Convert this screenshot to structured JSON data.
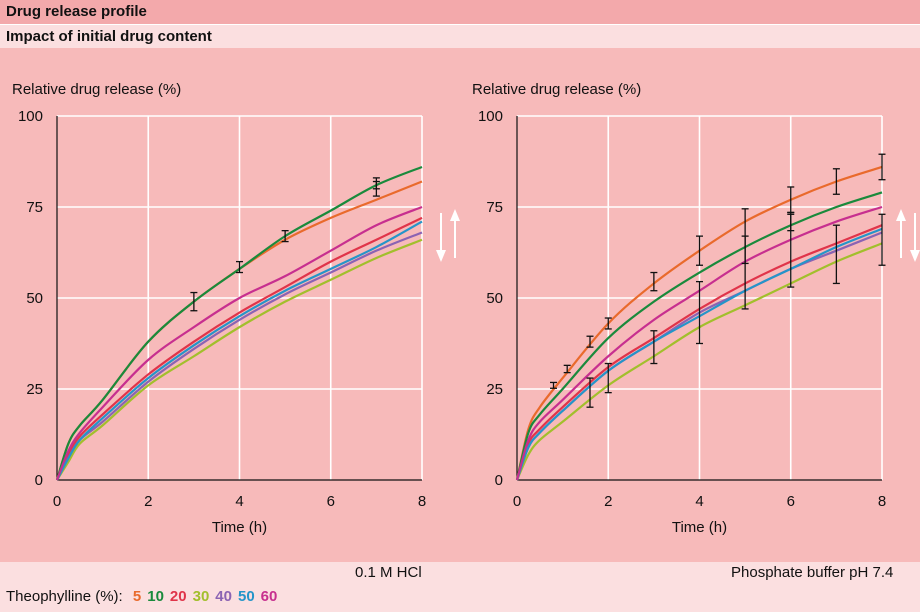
{
  "header": {
    "title": "Drug release profile",
    "subtitle": "Impact of initial drug content"
  },
  "legend": {
    "label": "Theophylline (%):",
    "items": [
      {
        "label": "5",
        "color": "#e96a2c"
      },
      {
        "label": "10",
        "color": "#1a8a3c"
      },
      {
        "label": "20",
        "color": "#e0344a"
      },
      {
        "label": "30",
        "color": "#a2bf2c"
      },
      {
        "label": "40",
        "color": "#8b63b3"
      },
      {
        "label": "50",
        "color": "#2595c9"
      },
      {
        "label": "60",
        "color": "#c72f8f"
      }
    ]
  },
  "chart_data": [
    {
      "type": "line",
      "condition": "0.1 M HCl",
      "ylabel": "Relative drug release (%)",
      "xlabel": "Time (h)",
      "xlim": [
        0,
        8
      ],
      "ylim": [
        0,
        100
      ],
      "xticks": [
        "0",
        "2",
        "4",
        "6",
        "8"
      ],
      "yticks": [
        "0",
        "25",
        "50",
        "75",
        "100"
      ],
      "grid": true,
      "x": [
        0,
        0.25,
        0.5,
        1,
        2,
        3,
        4,
        5,
        6,
        7,
        8
      ],
      "series": [
        {
          "name": "5",
          "values": [
            0,
            10,
            15,
            22,
            38,
            49,
            58,
            66,
            72,
            77,
            82
          ],
          "errors": [
            [
              3,
              49,
              2.5
            ],
            [
              4,
              58.5,
              1.5
            ],
            [
              5,
              67,
              1.5
            ],
            [
              7,
              80,
              2
            ]
          ]
        },
        {
          "name": "10",
          "values": [
            0,
            10,
            15,
            22,
            38,
            49,
            58,
            67,
            74,
            81,
            86
          ],
          "errors": [
            [
              7,
              81.5,
              1.5
            ]
          ]
        },
        {
          "name": "20",
          "values": [
            0,
            7,
            12,
            18,
            29,
            38,
            46,
            53,
            60,
            66,
            72
          ]
        },
        {
          "name": "30",
          "values": [
            0,
            5,
            10,
            15,
            26,
            34,
            42,
            49,
            55,
            61,
            66
          ]
        },
        {
          "name": "40",
          "values": [
            0,
            6,
            11,
            16,
            27,
            36,
            44,
            51,
            57,
            63,
            68
          ]
        },
        {
          "name": "50",
          "values": [
            0,
            6,
            11,
            17,
            28,
            37,
            45,
            52,
            58,
            64,
            71
          ]
        },
        {
          "name": "60",
          "values": [
            0,
            8,
            13,
            20,
            33,
            42,
            50,
            56,
            63,
            70,
            75
          ]
        }
      ],
      "arrows": [
        "down",
        "up"
      ]
    },
    {
      "type": "line",
      "condition": "Phosphate buffer pH 7.4",
      "ylabel": "Relative drug release (%)",
      "xlabel": "Time (h)",
      "xlim": [
        0,
        8
      ],
      "ylim": [
        0,
        100
      ],
      "xticks": [
        "0",
        "2",
        "4",
        "6",
        "8"
      ],
      "yticks": [
        "0",
        "25",
        "50",
        "75",
        "100"
      ],
      "grid": true,
      "x": [
        0,
        0.25,
        0.5,
        1,
        2,
        3,
        4,
        5,
        6,
        7,
        8
      ],
      "series": [
        {
          "name": "5",
          "values": [
            0,
            14,
            20,
            28,
            43,
            54,
            63,
            71,
            77,
            82,
            86
          ],
          "errors": [
            [
              0.8,
              26,
              0.8
            ],
            [
              1.1,
              30.5,
              1
            ],
            [
              1.6,
              38,
              1.5
            ],
            [
              2.0,
              43,
              1.5
            ],
            [
              3,
              54.5,
              2.5
            ],
            [
              4,
              63,
              4
            ],
            [
              6,
              77,
              3.5
            ],
            [
              7,
              82,
              3.5
            ],
            [
              8,
              86,
              3.5
            ]
          ]
        },
        {
          "name": "10",
          "values": [
            0,
            13,
            18,
            25,
            39,
            49,
            57,
            64,
            70,
            75,
            79
          ]
        },
        {
          "name": "20",
          "values": [
            0,
            10,
            14,
            20,
            31,
            39,
            47,
            54,
            60,
            65,
            70
          ]
        },
        {
          "name": "30",
          "values": [
            0,
            7,
            11,
            16,
            26,
            34,
            42,
            48,
            54,
            60,
            65
          ],
          "errors": [
            [
              1.6,
              24,
              4
            ],
            [
              2.0,
              28,
              4
            ],
            [
              3,
              36.5,
              4.5
            ],
            [
              4,
              46,
              8.5
            ],
            [
              5,
              57,
              10
            ],
            [
              6,
              63,
              10
            ],
            [
              7,
              62,
              8
            ],
            [
              8,
              66,
              7
            ]
          ]
        },
        {
          "name": "40",
          "values": [
            0,
            9,
            13,
            19,
            30,
            38,
            46,
            52,
            58,
            63,
            68
          ]
        },
        {
          "name": "50",
          "values": [
            0,
            9,
            13,
            19,
            30,
            38,
            45,
            52,
            58,
            64,
            69
          ]
        },
        {
          "name": "60",
          "values": [
            0,
            11,
            16,
            22,
            34,
            44,
            52,
            60,
            66,
            71,
            75
          ],
          "errors": [
            [
              5,
              67,
              7.5
            ],
            [
              6,
              71,
              2.5
            ]
          ]
        }
      ],
      "arrows": [
        "up",
        "down"
      ]
    }
  ]
}
